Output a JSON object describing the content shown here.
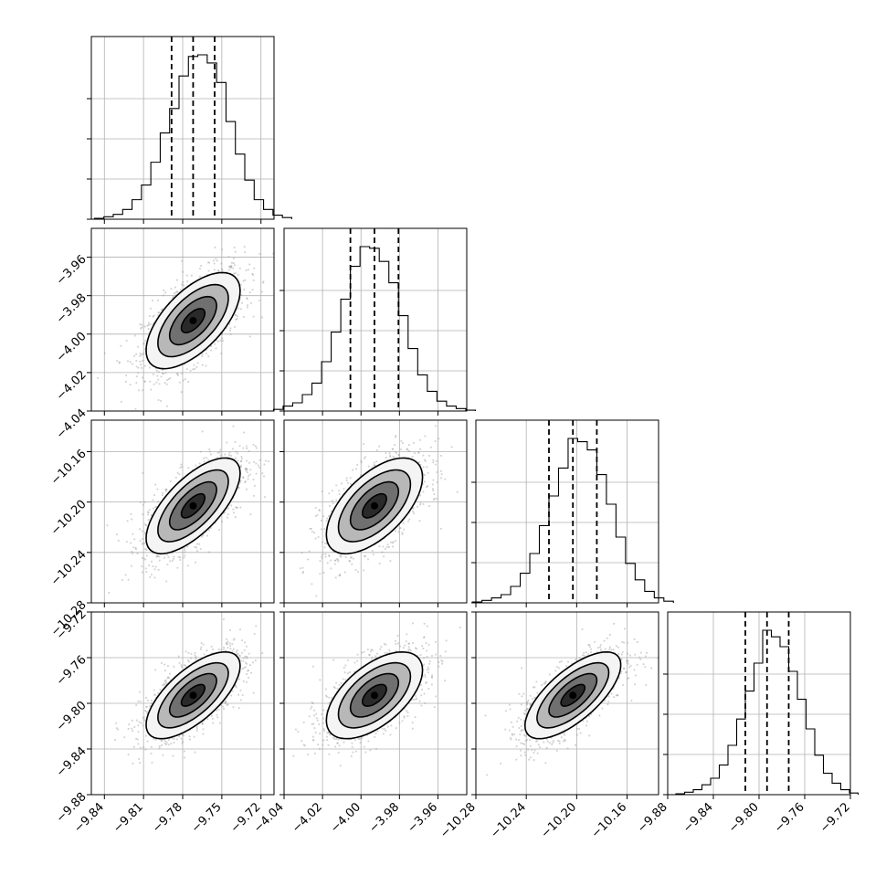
{
  "chart_data": {
    "type": "scatter",
    "variant": "corner",
    "grid": true,
    "params": [
      {
        "range": [
          -9.85,
          -9.71
        ],
        "xticks": [
          "−9.84",
          "−9.81",
          "−9.78",
          "−9.75",
          "−9.72"
        ],
        "xtick_values": [
          -9.84,
          -9.81,
          -9.78,
          -9.75,
          -9.72
        ],
        "mean": -9.772,
        "sd": 0.018,
        "quantiles": [
          -9.7885,
          -9.772,
          -9.7555
        ],
        "hist": [
          0.5,
          1.5,
          3,
          6,
          12,
          21,
          35,
          53,
          68,
          88,
          100,
          101,
          96,
          84,
          60,
          40,
          24,
          12,
          6,
          2.5,
          1
        ]
      },
      {
        "range": [
          -4.04,
          -3.945
        ],
        "yticks": [
          "−3.96",
          "−3.98",
          "−4.00",
          "−4.02",
          "−4.04"
        ],
        "ytick_values": [
          -3.96,
          -3.98,
          -4.0,
          -4.02,
          -4.04
        ],
        "xticks": [
          "−4.04",
          "−4.02",
          "−4.00",
          "−3.98",
          "−3.96"
        ],
        "xtick_values": [
          -4.04,
          -4.02,
          -4.0,
          -3.98,
          -3.96
        ],
        "mean": -3.993,
        "sd": 0.0125,
        "quantiles": [
          -4.0055,
          -3.993,
          -3.9805
        ],
        "hist": [
          1,
          3,
          5,
          10,
          17,
          30,
          48,
          68,
          88,
          100,
          99,
          91,
          78,
          58,
          38,
          22,
          12,
          6,
          3,
          1.5,
          0.5
        ]
      },
      {
        "range": [
          -10.28,
          -10.135
        ],
        "yticks": [
          "−10.16",
          "−10.20",
          "−10.24",
          "−10.28"
        ],
        "ytick_values": [
          -10.16,
          -10.2,
          -10.24,
          -10.28
        ],
        "xticks": [
          "−10.28",
          "−10.24",
          "−10.20",
          "−10.16"
        ],
        "xtick_values": [
          -10.28,
          -10.24,
          -10.2,
          -10.16
        ],
        "mean": -10.203,
        "sd": 0.019,
        "quantiles": [
          -10.222,
          -10.203,
          -10.184
        ],
        "hist": [
          0.5,
          1.5,
          3,
          5,
          10,
          18,
          30,
          47,
          65,
          82,
          100,
          98,
          93,
          78,
          60,
          40,
          24,
          14,
          7,
          3,
          1
        ]
      },
      {
        "range": [
          -9.88,
          -9.72
        ],
        "yticks": [
          "−9.72",
          "−9.76",
          "−9.80",
          "−9.84",
          "−9.88"
        ],
        "ytick_values": [
          -9.72,
          -9.76,
          -9.8,
          -9.84,
          -9.88
        ],
        "xticks": [
          "−9.88",
          "−9.84",
          "−9.80",
          "−9.76",
          "−9.72"
        ],
        "xtick_values": [
          -9.88,
          -9.84,
          -9.8,
          -9.76,
          -9.72
        ],
        "mean": -9.793,
        "sd": 0.019,
        "quantiles": [
          -9.812,
          -9.793,
          -9.774
        ],
        "hist": [
          0.5,
          1.5,
          3,
          6,
          10,
          18,
          30,
          46,
          63,
          80,
          100,
          96,
          90,
          75,
          58,
          40,
          24,
          13,
          7,
          3,
          1
        ]
      }
    ],
    "correlations": [
      [
        1.0,
        0.62,
        0.68,
        0.68
      ],
      [
        0.62,
        1.0,
        0.6,
        0.58
      ],
      [
        0.68,
        0.6,
        1.0,
        0.7
      ],
      [
        0.68,
        0.58,
        0.7,
        1.0
      ]
    ],
    "contour_levels_sigma": [
      0.5,
      1.0,
      1.5,
      2.0
    ],
    "colors": {
      "points": "#9a9a9a",
      "line": "#000000",
      "grid": "#b0b0b0"
    }
  }
}
